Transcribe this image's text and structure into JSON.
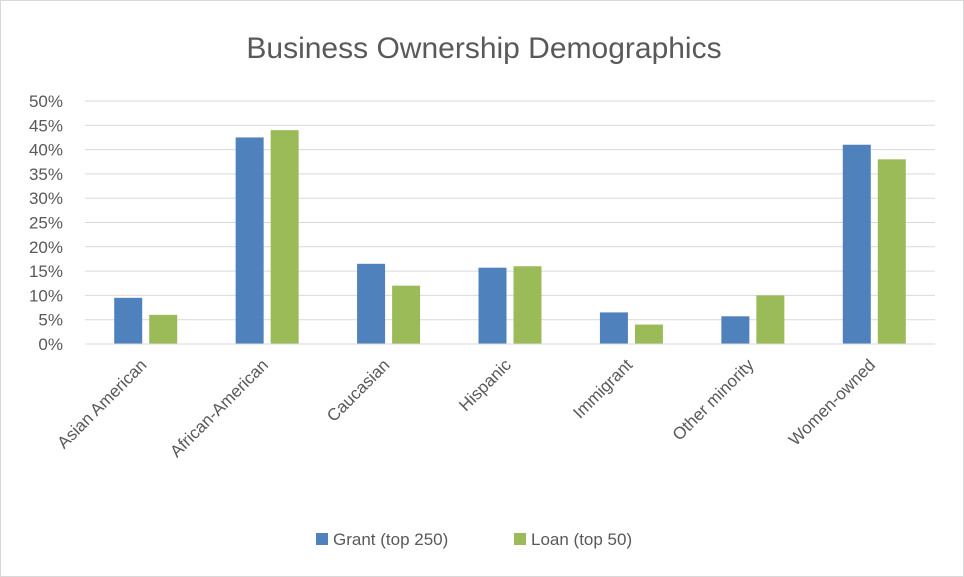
{
  "chart_data": {
    "type": "bar",
    "title": "Business Ownership Demographics",
    "xlabel": "",
    "ylabel": "",
    "ylim": [
      0,
      50
    ],
    "y_tick_step": 5,
    "y_tick_labels": [
      "0%",
      "5%",
      "10%",
      "15%",
      "20%",
      "25%",
      "30%",
      "35%",
      "40%",
      "45%",
      "50%"
    ],
    "grid": true,
    "legend_position": "bottom",
    "categories": [
      "Asian American",
      "African-American",
      "Caucasian",
      "Hispanic",
      "Immigrant",
      "Other minority",
      "Women-owned"
    ],
    "series": [
      {
        "name": "Grant (top 250)",
        "color": "#4f81bd",
        "values": [
          9.5,
          42.5,
          16.5,
          15.7,
          6.5,
          5.7,
          41.0
        ]
      },
      {
        "name": "Loan (top 50)",
        "color": "#9bbb59",
        "values": [
          6.0,
          44.0,
          12.0,
          16.0,
          4.0,
          10.0,
          38.0
        ]
      }
    ]
  }
}
